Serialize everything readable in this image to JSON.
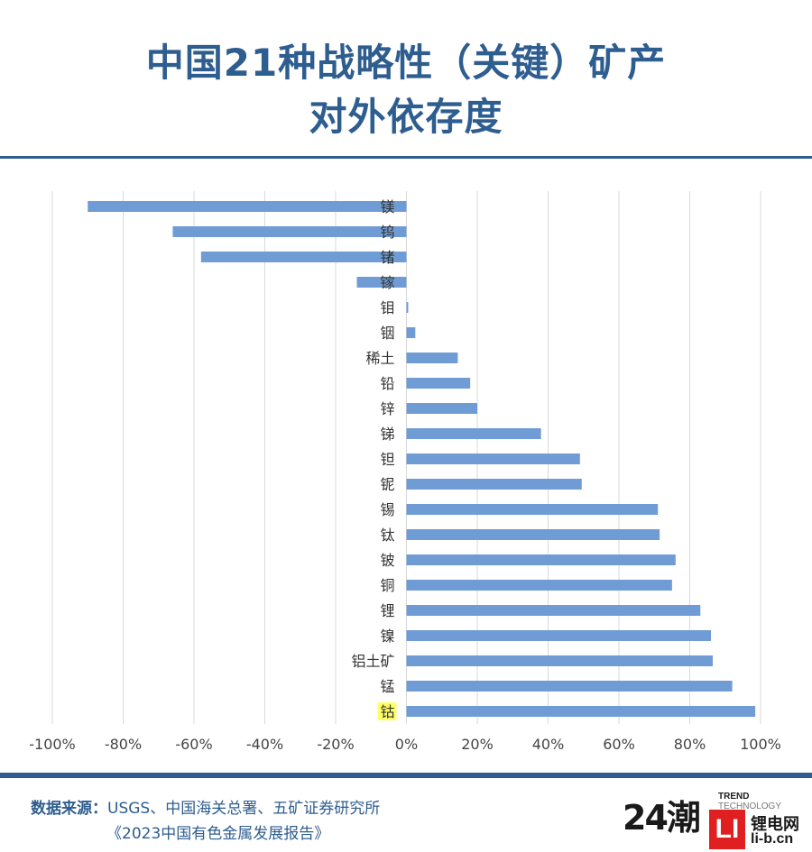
{
  "header": {
    "title_line1": "中国21种战略性（关键）矿产",
    "title_line2": "对外依存度"
  },
  "colors": {
    "title": "#2e5d8f",
    "bar": "#6f9cd4",
    "highlight": "#ffff66",
    "grid": "#d9d9d9",
    "logo_red": "#e02020"
  },
  "chart_data": {
    "type": "bar",
    "orientation": "horizontal",
    "title": "中国21种战略性（关键）矿产对外依存度",
    "categories": [
      "镁",
      "钨",
      "锗",
      "镓",
      "钼",
      "铟",
      "稀土",
      "铅",
      "锌",
      "锑",
      "钽",
      "铌",
      "锡",
      "钛",
      "铍",
      "铜",
      "锂",
      "镍",
      "铝土矿",
      "锰",
      "钴"
    ],
    "values": [
      -90,
      -66,
      -58,
      -14,
      0.5,
      2.5,
      14.5,
      18,
      20,
      38,
      49,
      49.5,
      71,
      71.5,
      76,
      75,
      83,
      86,
      86.5,
      92,
      98.5
    ],
    "highlighted_category": "钴",
    "xlim": [
      -100,
      100
    ],
    "xticks": [
      "-100%",
      "-80%",
      "-60%",
      "-40%",
      "-20%",
      "0%",
      "20%",
      "40%",
      "60%",
      "80%",
      "100%"
    ],
    "xtick_values": [
      -100,
      -80,
      -60,
      -40,
      -20,
      0,
      20,
      40,
      60,
      80,
      100
    ],
    "grid": true,
    "legend": "none"
  },
  "footer": {
    "source_label": "数据来源：",
    "source_text": "USGS、中国海关总署、五矿证券研究所",
    "source_line2": "《2023中国有色金属发展报告》",
    "logo_number": "24潮",
    "logo_trend": "TREND",
    "logo_technology": "TECHNOLOGY",
    "li_badge": "LI",
    "li_name": "锂电网",
    "li_url": "li-b.cn"
  }
}
